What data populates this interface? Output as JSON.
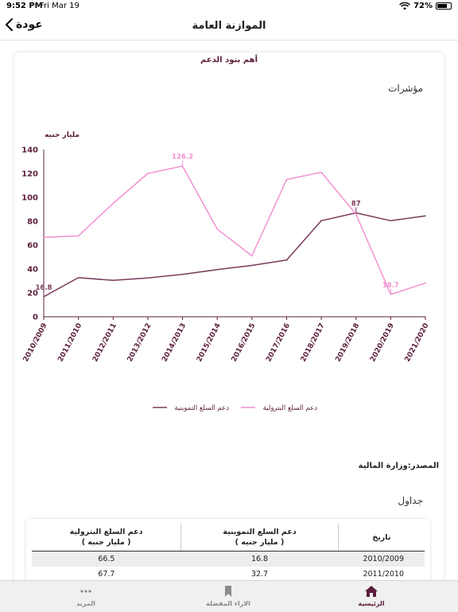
{
  "status": {
    "time": "9:52 PM",
    "date": "Fri Mar 19",
    "battery": "72%",
    "battery_level": 0.72
  },
  "nav": {
    "title": "الموازنة العامة",
    "back_label": "عودة"
  },
  "chart_title": "أهم بنود الدعم",
  "section_indicators": "مؤشرات",
  "section_tables": "جداول",
  "source": "المصدر:وزارة المالية",
  "colors": {
    "brand": "#5b1d3b",
    "series_petroleum": "#f291d1",
    "series_supply": "#7a3a5c"
  },
  "chart_data": {
    "type": "line",
    "ylabel": "مليار جنيه",
    "ylim": [
      0,
      140
    ],
    "yticks": [
      0,
      20,
      40,
      60,
      80,
      100,
      120,
      140
    ],
    "categories": [
      "2010/2009",
      "2011/2010",
      "2012/2011",
      "2013/2012",
      "2014/2013",
      "2015/2014",
      "2016/2015",
      "2017/2016",
      "2018/2017",
      "2019/2018",
      "2020/2019",
      "2021/2020"
    ],
    "series": [
      {
        "name": "دعم السلع التموينية",
        "color": "#7a3a5c",
        "values": [
          16.8,
          32.7,
          30.5,
          32.5,
          35.5,
          39.5,
          43,
          47.5,
          80.5,
          87,
          80.5,
          84.5
        ]
      },
      {
        "name": "دعم السلع البترولية",
        "color": "#f291d1",
        "values": [
          66.5,
          67.7,
          95,
          120,
          126.2,
          73.5,
          51,
          115,
          121,
          86,
          18.7,
          28.2
        ]
      }
    ],
    "annotations": [
      {
        "series": 0,
        "index": 0,
        "text": "16.8"
      },
      {
        "series": 1,
        "index": 4,
        "text": "126.2"
      },
      {
        "series": 0,
        "index": 9,
        "text": "87"
      },
      {
        "series": 1,
        "index": 10,
        "text": "18.7"
      }
    ],
    "legend_position": "bottom"
  },
  "table": {
    "headers": {
      "date": "تاريخ",
      "supply": "دعم السلع التموينية",
      "supply_unit": "( مليار جنيه )",
      "petroleum": "دعم السلع البترولية",
      "petroleum_unit": "( مليار جنيه )"
    },
    "rows": [
      {
        "date": "2010/2009",
        "supply": "16.8",
        "petroleum": "66.5"
      },
      {
        "date": "2011/2010",
        "supply": "32.7",
        "petroleum": "67.7"
      }
    ]
  },
  "tabs": [
    {
      "label": "الرئيسية",
      "icon": "home-icon",
      "active": true
    },
    {
      "label": "الاراء المفضلة",
      "icon": "bookmark-icon",
      "active": false
    },
    {
      "label": "المزيد",
      "icon": "more-icon",
      "active": false
    }
  ]
}
